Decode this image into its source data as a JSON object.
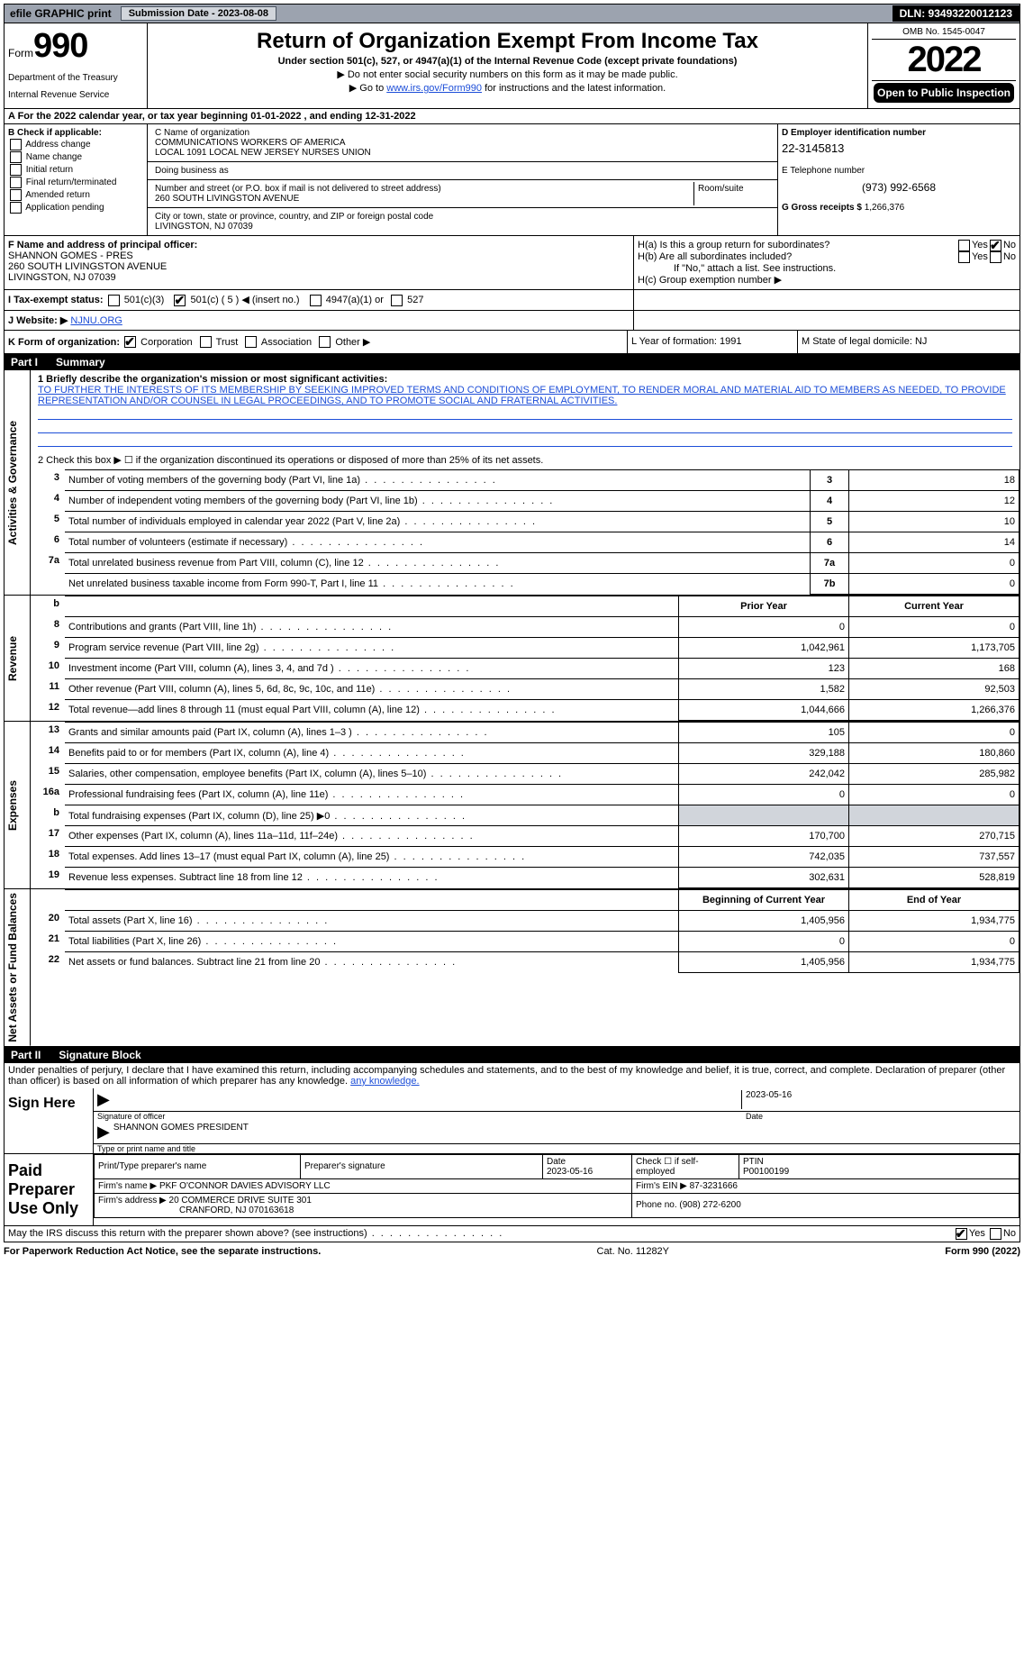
{
  "topbar": {
    "efile": "efile GRAPHIC print",
    "submission_label": "Submission Date - 2023-08-08",
    "dln": "DLN: 93493220012123"
  },
  "header": {
    "form_label": "Form",
    "form_no": "990",
    "dept": "Department of the Treasury",
    "irs": "Internal Revenue Service",
    "title": "Return of Organization Exempt From Income Tax",
    "sub": "Under section 501(c), 527, or 4947(a)(1) of the Internal Revenue Code (except private foundations)",
    "arrow1": "▶ Do not enter social security numbers on this form as it may be made public.",
    "arrow2_pre": "▶ Go to ",
    "arrow2_link": "www.irs.gov/Form990",
    "arrow2_post": " for instructions and the latest information.",
    "omb": "OMB No. 1545-0047",
    "year": "2022",
    "open": "Open to Public Inspection"
  },
  "row_a": "A For the 2022 calendar year, or tax year beginning 01-01-2022    , and ending 12-31-2022",
  "section_b": {
    "header": "B Check if applicable:",
    "items": [
      "Address change",
      "Name change",
      "Initial return",
      "Final return/terminated",
      "Amended return",
      "Application pending"
    ]
  },
  "section_c": {
    "name_label": "C Name of organization",
    "name1": "COMMUNICATIONS WORKERS OF AMERICA",
    "name2": "LOCAL 1091 LOCAL NEW JERSEY NURSES UNION",
    "dba": "Doing business as",
    "street_label": "Number and street (or P.O. box if mail is not delivered to street address)",
    "room": "Room/suite",
    "street": "260 SOUTH LIVINGSTON AVENUE",
    "city_label": "City or town, state or province, country, and ZIP or foreign postal code",
    "city": "LIVINGSTON, NJ  07039"
  },
  "section_d": {
    "ein_label": "D Employer identification number",
    "ein": "22-3145813",
    "phone_label": "E Telephone number",
    "phone": "(973) 992-6568",
    "gross_label": "G Gross receipts $",
    "gross": "1,266,376"
  },
  "section_f": {
    "label": "F Name and address of principal officer:",
    "name": "SHANNON GOMES - PRES",
    "addr1": "260 SOUTH LIVINGSTON AVENUE",
    "addr2": "LIVINGSTON, NJ  07039"
  },
  "section_h": {
    "ha": "H(a)  Is this a group return for subordinates?",
    "hb": "H(b)  Are all subordinates included?",
    "hb_note": "If \"No,\" attach a list. See instructions.",
    "hc": "H(c)  Group exemption number ▶",
    "yes": "Yes",
    "no": "No"
  },
  "row_i": {
    "label": "I  Tax-exempt status:",
    "o1": "501(c)(3)",
    "o2": "501(c) ( 5 ) ◀ (insert no.)",
    "o3": "4947(a)(1) or",
    "o4": "527"
  },
  "row_j": {
    "label": "J  Website: ▶",
    "val": "NJNU.ORG"
  },
  "row_k": {
    "label": "K Form of organization:",
    "corp": "Corporation",
    "trust": "Trust",
    "assoc": "Association",
    "other": "Other ▶"
  },
  "row_l": "L Year of formation: 1991",
  "row_m": "M State of legal domicile: NJ",
  "part1": {
    "header_num": "Part I",
    "header_title": "Summary",
    "line1_label": "1  Briefly describe the organization's mission or most significant activities:",
    "mission": "TO FURTHER THE INTERESTS OF ITS MEMBERSHIP BY SEEKING IMPROVED TERMS AND CONDITIONS OF EMPLOYMENT, TO RENDER MORAL AND MATERIAL AID TO MEMBERS AS NEEDED, TO PROVIDE REPRESENTATION AND/OR COUNSEL IN LEGAL PROCEEDINGS, AND TO PROMOTE SOCIAL AND FRATERNAL ACTIVITIES.",
    "line2": "2   Check this box ▶ ☐ if the organization discontinued its operations or disposed of more than 25% of its net assets.",
    "sides": {
      "gov": "Activities & Governance",
      "rev": "Revenue",
      "exp": "Expenses",
      "net": "Net Assets or Fund Balances"
    },
    "rows_gov": [
      {
        "n": "3",
        "d": "Number of voting members of the governing body (Part VI, line 1a)",
        "box": "3",
        "v": "18"
      },
      {
        "n": "4",
        "d": "Number of independent voting members of the governing body (Part VI, line 1b)",
        "box": "4",
        "v": "12"
      },
      {
        "n": "5",
        "d": "Total number of individuals employed in calendar year 2022 (Part V, line 2a)",
        "box": "5",
        "v": "10"
      },
      {
        "n": "6",
        "d": "Total number of volunteers (estimate if necessary)",
        "box": "6",
        "v": "14"
      },
      {
        "n": "7a",
        "d": "Total unrelated business revenue from Part VIII, column (C), line 12",
        "box": "7a",
        "v": "0"
      },
      {
        "n": "",
        "d": "Net unrelated business taxable income from Form 990-T, Part I, line 11",
        "box": "7b",
        "v": "0"
      }
    ],
    "col_hdr": {
      "b": "b",
      "prior": "Prior Year",
      "current": "Current Year"
    },
    "rows_rev": [
      {
        "n": "8",
        "d": "Contributions and grants (Part VIII, line 1h)",
        "p": "0",
        "c": "0"
      },
      {
        "n": "9",
        "d": "Program service revenue (Part VIII, line 2g)",
        "p": "1,042,961",
        "c": "1,173,705"
      },
      {
        "n": "10",
        "d": "Investment income (Part VIII, column (A), lines 3, 4, and 7d )",
        "p": "123",
        "c": "168"
      },
      {
        "n": "11",
        "d": "Other revenue (Part VIII, column (A), lines 5, 6d, 8c, 9c, 10c, and 11e)",
        "p": "1,582",
        "c": "92,503"
      },
      {
        "n": "12",
        "d": "Total revenue—add lines 8 through 11 (must equal Part VIII, column (A), line 12)",
        "p": "1,044,666",
        "c": "1,266,376"
      }
    ],
    "rows_exp": [
      {
        "n": "13",
        "d": "Grants and similar amounts paid (Part IX, column (A), lines 1–3 )",
        "p": "105",
        "c": "0"
      },
      {
        "n": "14",
        "d": "Benefits paid to or for members (Part IX, column (A), line 4)",
        "p": "329,188",
        "c": "180,860"
      },
      {
        "n": "15",
        "d": "Salaries, other compensation, employee benefits (Part IX, column (A), lines 5–10)",
        "p": "242,042",
        "c": "285,982"
      },
      {
        "n": "16a",
        "d": "Professional fundraising fees (Part IX, column (A), line 11e)",
        "p": "0",
        "c": "0"
      },
      {
        "n": "b",
        "d": "Total fundraising expenses (Part IX, column (D), line 25) ▶0",
        "p": "",
        "c": "",
        "grey": true
      },
      {
        "n": "17",
        "d": "Other expenses (Part IX, column (A), lines 11a–11d, 11f–24e)",
        "p": "170,700",
        "c": "270,715"
      },
      {
        "n": "18",
        "d": "Total expenses. Add lines 13–17 (must equal Part IX, column (A), line 25)",
        "p": "742,035",
        "c": "737,557"
      },
      {
        "n": "19",
        "d": "Revenue less expenses. Subtract line 18 from line 12",
        "p": "302,631",
        "c": "528,819"
      }
    ],
    "col_hdr2": {
      "prior": "Beginning of Current Year",
      "current": "End of Year"
    },
    "rows_net": [
      {
        "n": "20",
        "d": "Total assets (Part X, line 16)",
        "p": "1,405,956",
        "c": "1,934,775"
      },
      {
        "n": "21",
        "d": "Total liabilities (Part X, line 26)",
        "p": "0",
        "c": "0"
      },
      {
        "n": "22",
        "d": "Net assets or fund balances. Subtract line 21 from line 20",
        "p": "1,405,956",
        "c": "1,934,775"
      }
    ]
  },
  "part2": {
    "header_num": "Part II",
    "header_title": "Signature Block",
    "penalties": "Under penalties of perjury, I declare that I have examined this return, including accompanying schedules and statements, and to the best of my knowledge and belief, it is true, correct, and complete. Declaration of preparer (other than officer) is based on all information of which preparer has any knowledge.",
    "sign_here": "Sign Here",
    "sig_officer": "Signature of officer",
    "date": "Date",
    "date_val": "2023-05-16",
    "name_title": "SHANNON GOMES  PRESIDENT",
    "type_label": "Type or print name and title",
    "paid": "Paid Preparer Use Only",
    "prep_name_label": "Print/Type preparer's name",
    "prep_sig_label": "Preparer's signature",
    "prep_date": "2023-05-16",
    "check_if": "Check ☐ if self-employed",
    "ptin_label": "PTIN",
    "ptin": "P00100199",
    "firm_name_label": "Firm's name    ▶",
    "firm_name": "PKF O'CONNOR DAVIES ADVISORY LLC",
    "firm_ein_label": "Firm's EIN ▶",
    "firm_ein": "87-3231666",
    "firm_addr_label": "Firm's address ▶",
    "firm_addr1": "20 COMMERCE DRIVE SUITE 301",
    "firm_addr2": "CRANFORD, NJ  070163618",
    "firm_phone_label": "Phone no.",
    "firm_phone": "(908) 272-6200",
    "may_irs": "May the IRS discuss this return with the preparer shown above? (see instructions)"
  },
  "footer": {
    "left": "For Paperwork Reduction Act Notice, see the separate instructions.",
    "mid": "Cat. No. 11282Y",
    "right": "Form 990 (2022)"
  }
}
